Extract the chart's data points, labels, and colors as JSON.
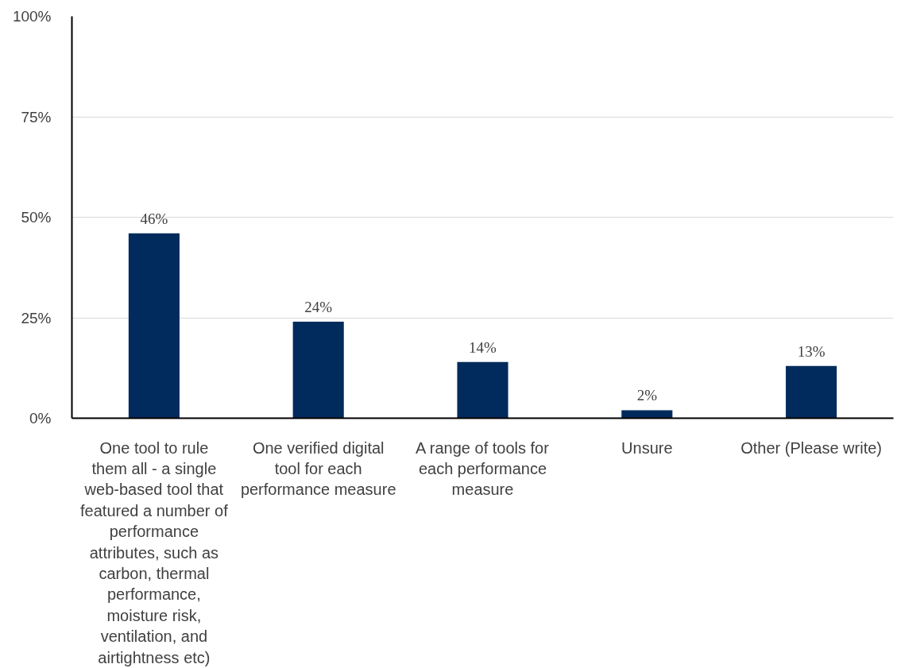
{
  "chart_data": {
    "type": "bar",
    "categories": [
      "One tool to rule them all - a single web-based tool that featured a number of performance attributes, such as carbon, thermal performance, moisture risk, ventilation, and airtightness etc)",
      "One verified digital tool for each performance measure",
      "A range of tools for each performance measure",
      "Unsure",
      "Other (Please write)"
    ],
    "values": [
      46,
      24,
      14,
      2,
      13
    ],
    "color": "#002b5c",
    "value_labels": [
      "46%",
      "24%",
      "14%",
      "2%",
      "13%"
    ],
    "ylim": [
      0,
      100
    ],
    "yticks": [
      {
        "value": 0,
        "label": "0%"
      },
      {
        "value": 25,
        "label": "25%"
      },
      {
        "value": 50,
        "label": "50%"
      },
      {
        "value": 75,
        "label": "75%"
      },
      {
        "value": 100,
        "label": "100%"
      }
    ],
    "grid": "y"
  }
}
